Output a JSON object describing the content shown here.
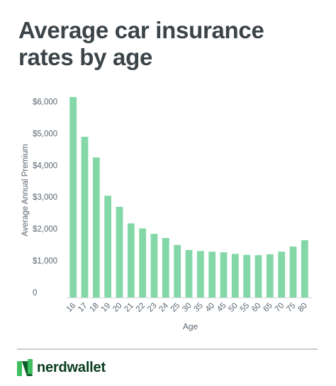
{
  "header": {
    "title": "Average car insurance rates by age"
  },
  "chart_data": {
    "type": "bar",
    "title": "Average car insurance rates by age",
    "xlabel": "Age",
    "ylabel": "Average Annual Premium",
    "categories": [
      "16",
      "17",
      "18",
      "19",
      "20",
      "21",
      "22",
      "23",
      "24",
      "25",
      "30",
      "35",
      "40",
      "45",
      "50",
      "55",
      "60",
      "65",
      "70",
      "75",
      "80"
    ],
    "values": [
      6300,
      5050,
      4400,
      3200,
      2850,
      2330,
      2170,
      2000,
      1870,
      1650,
      1490,
      1460,
      1440,
      1420,
      1370,
      1340,
      1330,
      1360,
      1440,
      1600,
      1800
    ],
    "yticks": [
      0,
      1000,
      2000,
      3000,
      4000,
      5000,
      6000
    ],
    "ytick_labels": [
      "0",
      "$1,000",
      "$2,000",
      "$3,000",
      "$4,000",
      "$5,000",
      "$6,000"
    ],
    "ylim": [
      0,
      6300
    ],
    "grid": false,
    "bar_color": "#84d8a8"
  },
  "footer": {
    "brand_name": "nerdwallet",
    "logo_icon": "nerdwallet-logo-icon",
    "brand_color": "#0a3d1f",
    "logo_light": "#3fbf5e",
    "logo_dark": "#0b5e2a"
  }
}
